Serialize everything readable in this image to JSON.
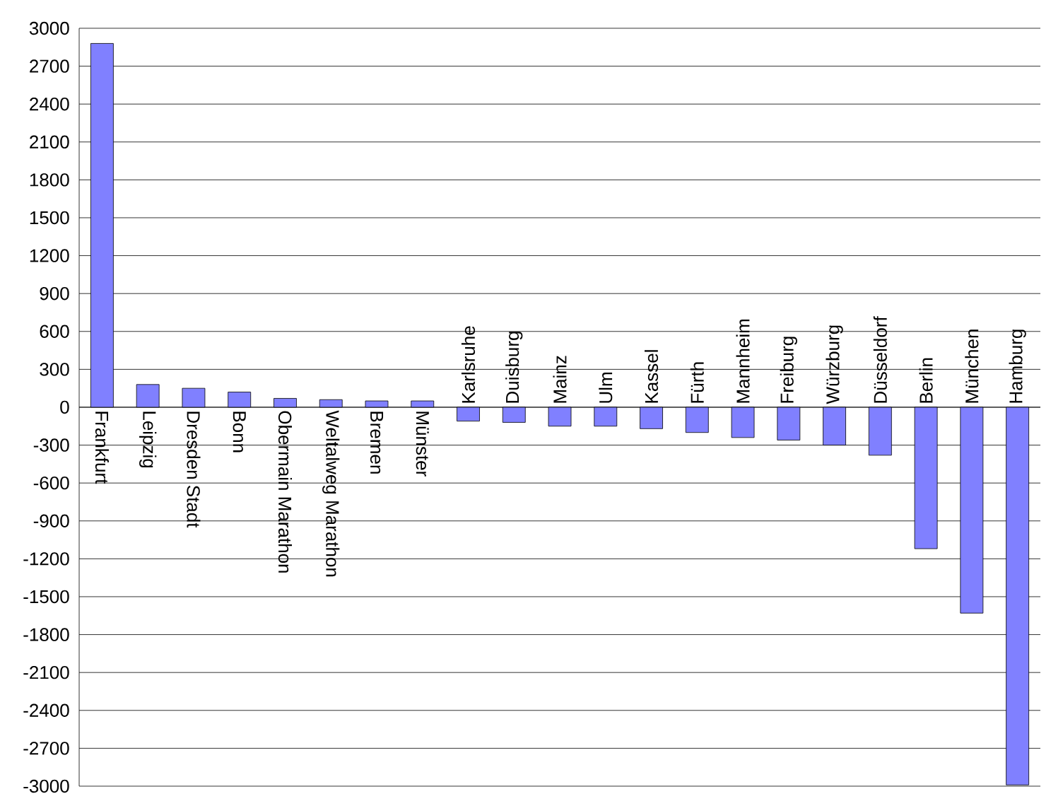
{
  "chart_data": {
    "type": "bar",
    "categories": [
      "Frankfurt",
      "Leipzig",
      "Dresden Stadt",
      "Bonn",
      "Obermain Marathon",
      "Weltalweg Marathon",
      "Bremen",
      "Münster",
      "Karlsruhe",
      "Duisburg",
      "Mainz",
      "Ulm",
      "Kassel",
      "Fürth",
      "Mannheim",
      "Freiburg",
      "Würzburg",
      "Düsseldorf",
      "Berlin",
      "München",
      "Hamburg"
    ],
    "values": [
      2880,
      180,
      150,
      120,
      70,
      60,
      50,
      50,
      -110,
      -120,
      -150,
      -150,
      -170,
      -200,
      -240,
      -260,
      -300,
      -380,
      -1120,
      -1630,
      -2990
    ],
    "color": "#8080ff",
    "ylim": [
      -3000,
      3000
    ],
    "yticks": [
      -3000,
      -2700,
      -2400,
      -2100,
      -1800,
      -1500,
      -1200,
      -900,
      -600,
      -300,
      0,
      300,
      600,
      900,
      1200,
      1500,
      1800,
      2100,
      2400,
      2700,
      3000
    ],
    "grid": "y"
  }
}
